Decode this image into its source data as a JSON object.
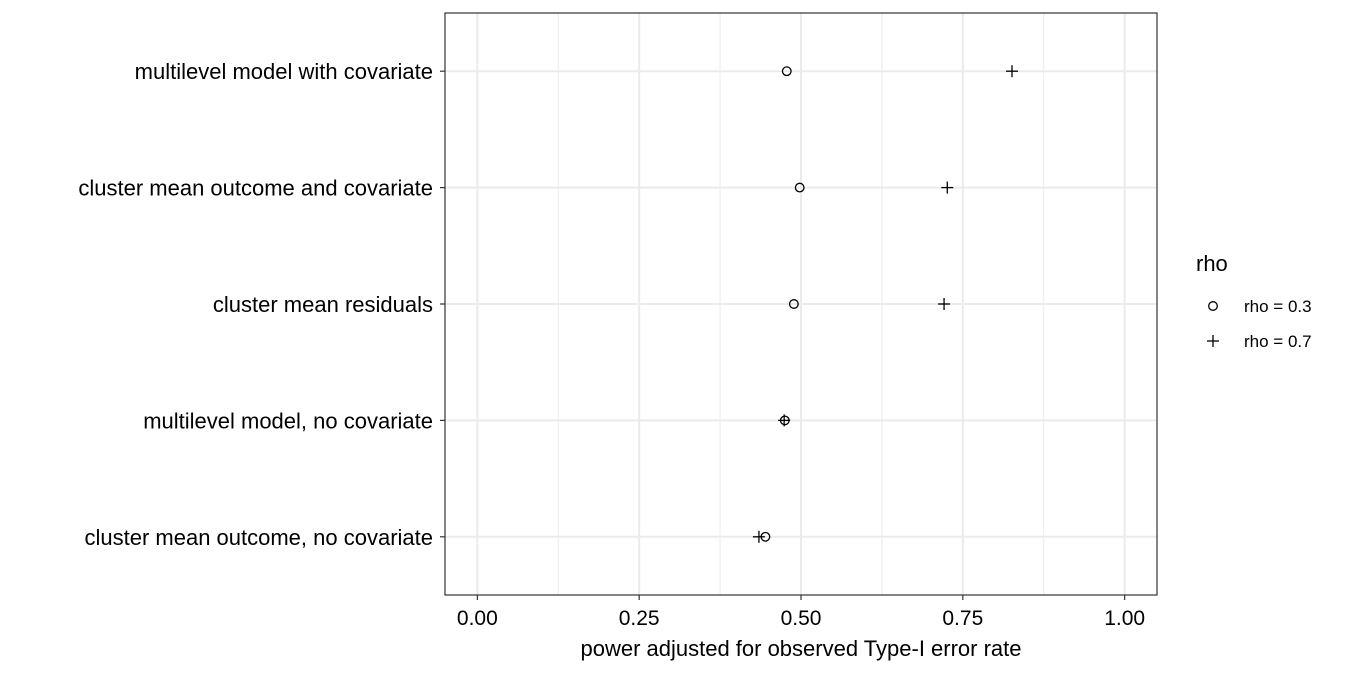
{
  "chart_data": {
    "type": "scatter",
    "title": "",
    "xlabel": "power adjusted for observed Type-I error rate",
    "ylabel": "",
    "xlim": [
      -0.05,
      1.05
    ],
    "x_ticks": [
      "0.00",
      "0.25",
      "0.50",
      "0.75",
      "1.00"
    ],
    "x_tick_values": [
      0,
      0.25,
      0.5,
      0.75,
      1
    ],
    "x_minor_ticks": [
      0.125,
      0.375,
      0.625,
      0.875
    ],
    "grid": true,
    "categories": [
      "multilevel model with covariate",
      "cluster mean outcome and covariate",
      "cluster mean residuals",
      "multilevel model, no covariate",
      "cluster mean outcome, no covariate"
    ],
    "series": [
      {
        "name": "rho = 0.3",
        "shape": "circle",
        "values": [
          0.478,
          0.498,
          0.489,
          0.475,
          0.445
        ]
      },
      {
        "name": "rho = 0.7",
        "shape": "plus",
        "values": [
          0.826,
          0.726,
          0.721,
          0.474,
          0.435
        ]
      }
    ],
    "legend": {
      "title": "rho",
      "position": "right"
    },
    "colors": {
      "marks": "#000000",
      "grid": "#ebebeb",
      "border": "#333333"
    }
  }
}
